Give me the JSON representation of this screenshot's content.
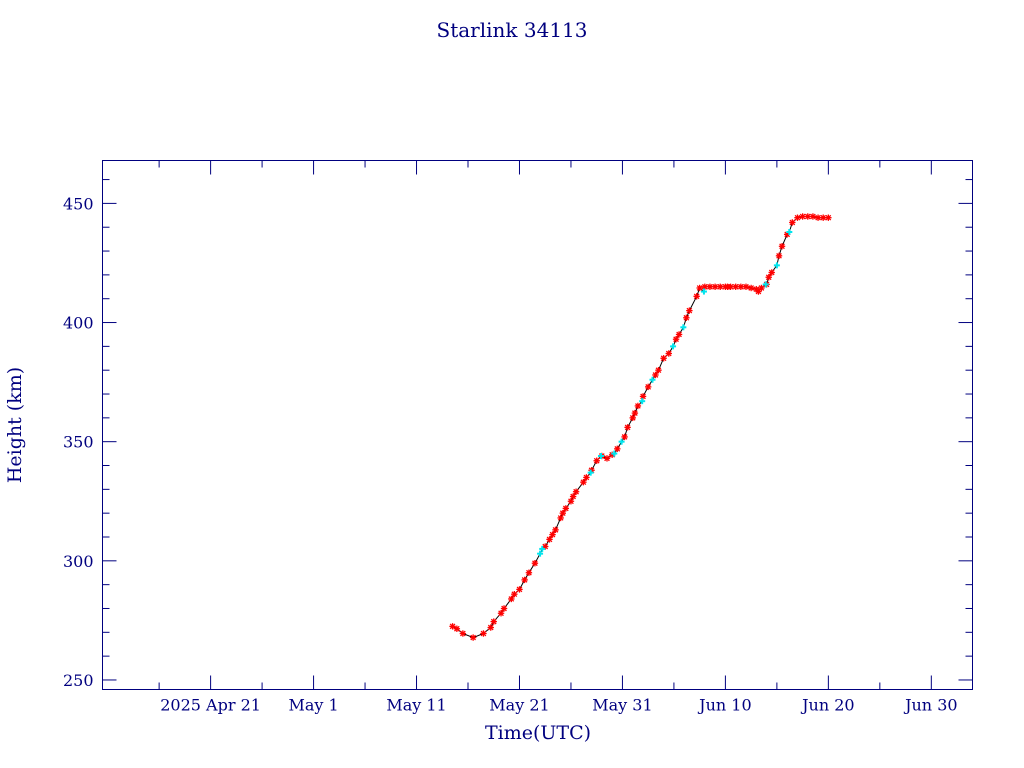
{
  "chart_data": {
    "type": "scatter",
    "title": "Starlink 34113",
    "xlabel": "Time(UTC)",
    "ylabel": "Height (km)",
    "xlim": [
      "2025-04-10T12:00",
      "2025-07-04T00:00"
    ],
    "ylim": [
      246,
      468
    ],
    "x_tick_labels": [
      {
        "date": "2025-04-21",
        "label": "2025 Apr 21"
      },
      {
        "date": "2025-05-01",
        "label": "May  1"
      },
      {
        "date": "2025-05-11",
        "label": "May 11"
      },
      {
        "date": "2025-05-21",
        "label": "May 21"
      },
      {
        "date": "2025-05-31",
        "label": "May 31"
      },
      {
        "date": "2025-06-10",
        "label": "Jun 10"
      },
      {
        "date": "2025-06-20",
        "label": "Jun 20"
      },
      {
        "date": "2025-06-30",
        "label": "Jun 30"
      }
    ],
    "y_tick_labels": [
      250,
      300,
      350,
      400,
      450
    ],
    "grid": false,
    "colors": {
      "axis": "#00007f",
      "line": "#000000",
      "marker_primary": "#ff0000",
      "marker_secondary": "#00e5ee"
    },
    "series": [
      {
        "marker": "star",
        "color": "#ff0000",
        "points": [
          [
            "2025-05-14T12:00",
            272.5
          ],
          [
            "2025-05-14T22:00",
            271.5
          ],
          [
            "2025-05-15T12:00",
            269.5
          ],
          [
            "2025-05-16T12:00",
            267.8
          ],
          [
            "2025-05-17T12:00",
            269.5
          ],
          [
            "2025-05-18T05:00",
            272
          ],
          [
            "2025-05-18T12:00",
            274.5
          ],
          [
            "2025-05-19T05:00",
            278
          ],
          [
            "2025-05-19T12:00",
            280
          ],
          [
            "2025-05-20T05:00",
            284
          ],
          [
            "2025-05-20T12:00",
            286
          ],
          [
            "2025-05-21T00:00",
            288
          ],
          [
            "2025-05-21T12:00",
            292
          ],
          [
            "2025-05-21T22:00",
            295
          ],
          [
            "2025-05-22T12:00",
            299
          ],
          [
            "2025-05-23T12:00",
            306
          ],
          [
            "2025-05-23T22:00",
            309
          ],
          [
            "2025-05-24T05:00",
            311
          ],
          [
            "2025-05-24T12:00",
            313
          ],
          [
            "2025-05-25T00:00",
            318
          ],
          [
            "2025-05-25T05:00",
            320
          ],
          [
            "2025-05-25T12:00",
            322
          ],
          [
            "2025-05-26T00:00",
            325
          ],
          [
            "2025-05-26T05:00",
            327
          ],
          [
            "2025-05-26T12:00",
            329
          ],
          [
            "2025-05-27T05:00",
            333
          ],
          [
            "2025-05-27T12:00",
            335
          ],
          [
            "2025-05-28T00:00",
            338
          ],
          [
            "2025-05-28T12:00",
            342
          ],
          [
            "2025-05-29T00:00",
            344
          ],
          [
            "2025-05-29T12:00",
            343
          ],
          [
            "2025-05-30T00:00",
            344.5
          ],
          [
            "2025-05-30T12:00",
            347
          ],
          [
            "2025-05-31T05:00",
            352
          ],
          [
            "2025-05-31T12:00",
            356
          ],
          [
            "2025-06-01T00:00",
            360
          ],
          [
            "2025-06-01T05:00",
            362
          ],
          [
            "2025-06-01T12:00",
            365
          ],
          [
            "2025-06-02T00:00",
            369
          ],
          [
            "2025-06-02T12:00",
            373
          ],
          [
            "2025-06-03T05:00",
            378
          ],
          [
            "2025-06-03T12:00",
            380
          ],
          [
            "2025-06-04T00:00",
            385
          ],
          [
            "2025-06-04T12:00",
            387
          ],
          [
            "2025-06-05T05:00",
            393
          ],
          [
            "2025-06-05T12:00",
            395
          ],
          [
            "2025-06-06T05:00",
            402
          ],
          [
            "2025-06-06T12:00",
            405
          ],
          [
            "2025-06-07T05:00",
            411
          ],
          [
            "2025-06-07T12:00",
            414.5
          ],
          [
            "2025-06-08T00:00",
            415
          ],
          [
            "2025-06-08T12:00",
            415
          ],
          [
            "2025-06-09T00:00",
            415
          ],
          [
            "2025-06-09T12:00",
            415
          ],
          [
            "2025-06-10T00:00",
            415
          ],
          [
            "2025-06-10T05:00",
            415
          ],
          [
            "2025-06-10T12:00",
            415
          ],
          [
            "2025-06-11T00:00",
            415
          ],
          [
            "2025-06-11T12:00",
            415
          ],
          [
            "2025-06-12T00:00",
            415
          ],
          [
            "2025-06-12T12:00",
            414.5
          ],
          [
            "2025-06-13T00:00",
            414
          ],
          [
            "2025-06-13T05:00",
            413
          ],
          [
            "2025-06-13T12:00",
            414.5
          ],
          [
            "2025-06-14T00:00",
            416
          ],
          [
            "2025-06-14T05:00",
            419
          ],
          [
            "2025-06-14T12:00",
            421
          ],
          [
            "2025-06-15T05:00",
            428
          ],
          [
            "2025-06-15T12:00",
            432
          ],
          [
            "2025-06-16T00:00",
            437
          ],
          [
            "2025-06-16T12:00",
            442
          ],
          [
            "2025-06-17T00:00",
            444
          ],
          [
            "2025-06-17T12:00",
            444.5
          ],
          [
            "2025-06-18T00:00",
            444.5
          ],
          [
            "2025-06-18T12:00",
            444.5
          ],
          [
            "2025-06-19T00:00",
            444
          ],
          [
            "2025-06-19T12:00",
            444
          ],
          [
            "2025-06-20T00:00",
            444
          ]
        ]
      },
      {
        "marker": "cross",
        "color": "#00e5ee",
        "points": [
          [
            "2025-05-23T00:00",
            303
          ],
          [
            "2025-05-23T05:00",
            305
          ],
          [
            "2025-05-27T22:00",
            337
          ],
          [
            "2025-05-28T22:00",
            344
          ],
          [
            "2025-05-30T05:00",
            345
          ],
          [
            "2025-05-30T22:00",
            350
          ],
          [
            "2025-06-01T22:00",
            367
          ],
          [
            "2025-06-02T22:00",
            376
          ],
          [
            "2025-06-04T22:00",
            390
          ],
          [
            "2025-06-05T22:00",
            398
          ],
          [
            "2025-06-07T22:00",
            413
          ],
          [
            "2025-06-13T22:00",
            416
          ],
          [
            "2025-06-15T00:00",
            424
          ],
          [
            "2025-06-16T05:00",
            438
          ]
        ]
      }
    ]
  }
}
